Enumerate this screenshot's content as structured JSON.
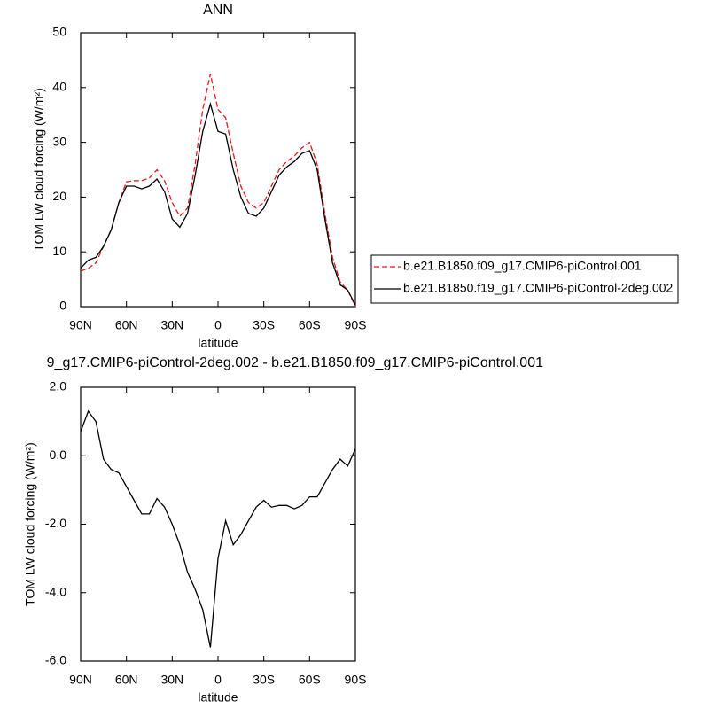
{
  "chart_data": [
    {
      "type": "line",
      "title": "ANN",
      "xlabel": "latitude",
      "ylabel": "TOM LW cloud forcing (W/m²)",
      "x": [
        90,
        85,
        80,
        75,
        70,
        65,
        60,
        55,
        50,
        45,
        40,
        35,
        30,
        25,
        20,
        15,
        10,
        5,
        0,
        -5,
        -10,
        -15,
        -20,
        -25,
        -30,
        -35,
        -40,
        -45,
        -50,
        -55,
        -60,
        -65,
        -70,
        -75,
        -80,
        -85,
        -90
      ],
      "xlim": [
        90,
        -90
      ],
      "xticks": [
        {
          "value": 90,
          "label": "90N"
        },
        {
          "value": 60,
          "label": "60N"
        },
        {
          "value": 30,
          "label": "30N"
        },
        0,
        {
          "value": -30,
          "label": "30S"
        },
        {
          "value": -60,
          "label": "60S"
        },
        {
          "value": -90,
          "label": "90S"
        }
      ],
      "ylim": [
        0,
        50
      ],
      "yticks": [
        0,
        10,
        20,
        30,
        40,
        50
      ],
      "series": [
        {
          "name": "b.e21.B1850.f09_g17.CMIP6-piControl.001",
          "color": "#e41a1c",
          "dashed": true,
          "values": [
            6.5,
            7,
            8,
            11,
            14,
            19,
            22.8,
            23,
            23,
            23.5,
            25,
            23,
            19,
            16.5,
            18,
            26,
            36,
            42.5,
            36,
            34.5,
            28,
            22,
            19,
            18,
            19,
            22,
            25,
            26.5,
            27.5,
            29,
            30,
            26,
            17,
            9,
            4.5,
            3,
            0
          ]
        },
        {
          "name": "b.e21.B1850.f19_g17.CMIP6-piControl-2deg.002",
          "color": "#000000",
          "dashed": false,
          "values": [
            7,
            8.5,
            9,
            11,
            14,
            19,
            22,
            22,
            21.5,
            22,
            23.3,
            21,
            16,
            14.5,
            17,
            24,
            32,
            37,
            32,
            31.5,
            25,
            20,
            17,
            16.5,
            18,
            21,
            24,
            25.5,
            26.5,
            28,
            28.5,
            25,
            16,
            8,
            4,
            3,
            0.3
          ]
        }
      ]
    },
    {
      "type": "line",
      "title": "9_g17.CMIP6-piControl-2deg.002 - b.e21.B1850.f09_g17.CMIP6-piControl.001",
      "xlabel": "latitude",
      "ylabel": "TOM LW cloud forcing (W/m²)",
      "x": [
        90,
        85,
        80,
        75,
        70,
        65,
        60,
        55,
        50,
        45,
        40,
        35,
        30,
        25,
        20,
        15,
        10,
        5,
        0,
        -5,
        -10,
        -15,
        -20,
        -25,
        -30,
        -35,
        -40,
        -45,
        -50,
        -55,
        -60,
        -65,
        -70,
        -75,
        -80,
        -85,
        -90
      ],
      "xlim": [
        90,
        -90
      ],
      "xticks": [
        {
          "value": 90,
          "label": "90N"
        },
        {
          "value": 60,
          "label": "60N"
        },
        {
          "value": 30,
          "label": "30N"
        },
        0,
        {
          "value": -30,
          "label": "30S"
        },
        {
          "value": -60,
          "label": "60S"
        },
        {
          "value": -90,
          "label": "90S"
        }
      ],
      "ylim": [
        -6,
        2
      ],
      "yticks": [
        {
          "value": -6,
          "label": "-6.0"
        },
        {
          "value": -4,
          "label": "-4.0"
        },
        {
          "value": -2,
          "label": "-2.0"
        },
        {
          "value": 0,
          "label": "0.0"
        },
        {
          "value": 2,
          "label": "2.0"
        }
      ],
      "series": [
        {
          "color": "#000000",
          "dashed": false,
          "values": [
            0.7,
            1.3,
            1.0,
            -0.1,
            -0.4,
            -0.5,
            -0.9,
            -1.3,
            -1.7,
            -1.7,
            -1.25,
            -1.5,
            -2.0,
            -2.6,
            -3.4,
            -3.9,
            -4.5,
            -5.6,
            -3.0,
            -1.9,
            -2.6,
            -2.3,
            -1.9,
            -1.5,
            -1.3,
            -1.5,
            -1.45,
            -1.45,
            -1.55,
            -1.45,
            -1.2,
            -1.2,
            -0.8,
            -0.4,
            -0.1,
            -0.3,
            0.2
          ]
        }
      ]
    }
  ]
}
